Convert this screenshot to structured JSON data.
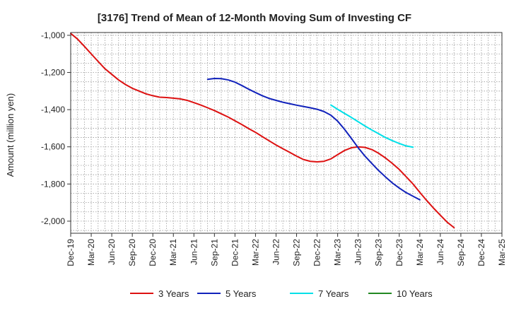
{
  "chart_data": {
    "type": "line",
    "title": "[3176]  Trend of Mean of 12-Month Moving Sum of Investing CF",
    "xlabel": "",
    "ylabel": "Amount (million yen)",
    "ylim": [
      -2065,
      -985
    ],
    "yticks": [
      -1000,
      -1200,
      -1400,
      -1600,
      -1800,
      -2000
    ],
    "ytick_labels": [
      "-1,000",
      "-1,200",
      "-1,400",
      "-1,600",
      "-1,800",
      "-2,000"
    ],
    "categories": [
      "Dec-19",
      "Mar-20",
      "Jun-20",
      "Sep-20",
      "Dec-20",
      "Mar-21",
      "Jun-21",
      "Sep-21",
      "Dec-21",
      "Mar-22",
      "Jun-22",
      "Sep-22",
      "Dec-22",
      "Mar-23",
      "Jun-23",
      "Sep-23",
      "Dec-23",
      "Mar-24",
      "Jun-24",
      "Sep-24",
      "Dec-24",
      "Mar-25"
    ],
    "grid": true,
    "legend_position": "bottom",
    "series": [
      {
        "name": "3 Years",
        "color": "#dd1111",
        "points": [
          [
            0,
            -990
          ],
          [
            0.33,
            -1020
          ],
          [
            0.67,
            -1060
          ],
          [
            1,
            -1100
          ],
          [
            1.33,
            -1140
          ],
          [
            1.67,
            -1180
          ],
          [
            2,
            -1210
          ],
          [
            2.33,
            -1240
          ],
          [
            2.67,
            -1265
          ],
          [
            3,
            -1285
          ],
          [
            3.33,
            -1300
          ],
          [
            3.67,
            -1315
          ],
          [
            4,
            -1325
          ],
          [
            4.33,
            -1333
          ],
          [
            4.67,
            -1335
          ],
          [
            5,
            -1338
          ],
          [
            5.33,
            -1342
          ],
          [
            5.67,
            -1350
          ],
          [
            6,
            -1362
          ],
          [
            6.33,
            -1375
          ],
          [
            6.67,
            -1390
          ],
          [
            7,
            -1405
          ],
          [
            7.33,
            -1422
          ],
          [
            7.67,
            -1440
          ],
          [
            8,
            -1460
          ],
          [
            8.33,
            -1480
          ],
          [
            8.67,
            -1502
          ],
          [
            9,
            -1522
          ],
          [
            9.33,
            -1545
          ],
          [
            9.67,
            -1568
          ],
          [
            10,
            -1590
          ],
          [
            10.33,
            -1610
          ],
          [
            10.67,
            -1630
          ],
          [
            11,
            -1650
          ],
          [
            11.33,
            -1668
          ],
          [
            11.67,
            -1678
          ],
          [
            12,
            -1681
          ],
          [
            12.33,
            -1678
          ],
          [
            12.67,
            -1665
          ],
          [
            13,
            -1642
          ],
          [
            13.33,
            -1620
          ],
          [
            13.67,
            -1605
          ],
          [
            14,
            -1600
          ],
          [
            14.33,
            -1603
          ],
          [
            14.67,
            -1615
          ],
          [
            15,
            -1635
          ],
          [
            15.33,
            -1660
          ],
          [
            15.67,
            -1690
          ],
          [
            16,
            -1722
          ],
          [
            16.33,
            -1760
          ],
          [
            16.67,
            -1800
          ],
          [
            17,
            -1845
          ],
          [
            17.33,
            -1888
          ],
          [
            17.67,
            -1930
          ],
          [
            18,
            -1968
          ],
          [
            18.33,
            -2005
          ],
          [
            18.67,
            -2035
          ]
        ]
      },
      {
        "name": "5 Years",
        "color": "#1122bb",
        "points": [
          [
            6.67,
            -1237
          ],
          [
            7,
            -1232
          ],
          [
            7.33,
            -1233
          ],
          [
            7.67,
            -1240
          ],
          [
            8,
            -1252
          ],
          [
            8.33,
            -1270
          ],
          [
            8.67,
            -1290
          ],
          [
            9,
            -1308
          ],
          [
            9.33,
            -1325
          ],
          [
            9.67,
            -1340
          ],
          [
            10,
            -1350
          ],
          [
            10.33,
            -1360
          ],
          [
            10.67,
            -1368
          ],
          [
            11,
            -1376
          ],
          [
            11.33,
            -1383
          ],
          [
            11.67,
            -1390
          ],
          [
            12,
            -1398
          ],
          [
            12.33,
            -1410
          ],
          [
            12.67,
            -1430
          ],
          [
            13,
            -1462
          ],
          [
            13.33,
            -1505
          ],
          [
            13.67,
            -1555
          ],
          [
            14,
            -1605
          ],
          [
            14.33,
            -1650
          ],
          [
            14.67,
            -1690
          ],
          [
            15,
            -1728
          ],
          [
            15.33,
            -1762
          ],
          [
            15.67,
            -1795
          ],
          [
            16,
            -1822
          ],
          [
            16.33,
            -1846
          ],
          [
            16.67,
            -1866
          ],
          [
            17,
            -1885
          ]
        ]
      },
      {
        "name": "7 Years",
        "color": "#00e0e8",
        "points": [
          [
            12.67,
            -1375
          ],
          [
            13,
            -1398
          ],
          [
            13.33,
            -1420
          ],
          [
            13.67,
            -1442
          ],
          [
            14,
            -1465
          ],
          [
            14.33,
            -1488
          ],
          [
            14.67,
            -1510
          ],
          [
            15,
            -1530
          ],
          [
            15.33,
            -1550
          ],
          [
            15.67,
            -1567
          ],
          [
            16,
            -1582
          ],
          [
            16.33,
            -1595
          ],
          [
            16.67,
            -1602
          ]
        ]
      },
      {
        "name": "10 Years",
        "color": "#228822",
        "points": []
      }
    ]
  }
}
